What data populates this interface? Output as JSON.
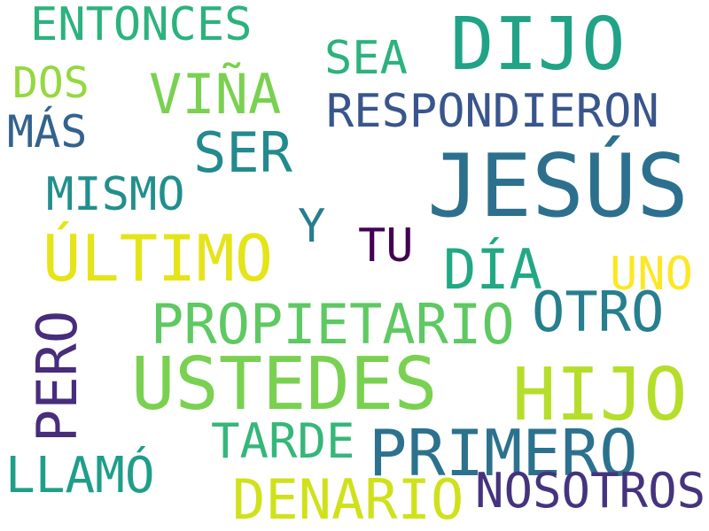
{
  "words": [
    {
      "text": "ENTONCES",
      "color": "#2db27d"
    },
    {
      "text": "DIJO",
      "color": "#20a386"
    },
    {
      "text": "SEA",
      "color": "#2db27d"
    },
    {
      "text": "DOS",
      "color": "#95d840"
    },
    {
      "text": "VIÑA",
      "color": "#7ad151"
    },
    {
      "text": "RESPONDIERON",
      "color": "#39558c"
    },
    {
      "text": "MÁS",
      "color": "#33638d"
    },
    {
      "text": "SER",
      "color": "#238a8d"
    },
    {
      "text": "JESÚS",
      "color": "#2d708e"
    },
    {
      "text": "MISMO",
      "color": "#218f8d"
    },
    {
      "text": "Y",
      "color": "#287d8e"
    },
    {
      "text": "TU",
      "color": "#440154"
    },
    {
      "text": "ÚLTIMO",
      "color": "#e5e419"
    },
    {
      "text": "DÍA",
      "color": "#22a884"
    },
    {
      "text": "UNO",
      "color": "#fde725"
    },
    {
      "text": "PROPIETARIO",
      "color": "#5ec962"
    },
    {
      "text": "OTRO",
      "color": "#277f8e"
    },
    {
      "text": "PERO",
      "color": "#472d7b"
    },
    {
      "text": "USTEDES",
      "color": "#7ad151"
    },
    {
      "text": "HIJO",
      "color": "#b5de2b"
    },
    {
      "text": "TARDE",
      "color": "#35b779"
    },
    {
      "text": "PRIMERO",
      "color": "#2c728e"
    },
    {
      "text": "LLAMÓ",
      "color": "#1f9e89"
    },
    {
      "text": "DENARIO",
      "color": "#d0e11c"
    },
    {
      "text": "NOSOTROS",
      "color": "#46337e"
    }
  ]
}
